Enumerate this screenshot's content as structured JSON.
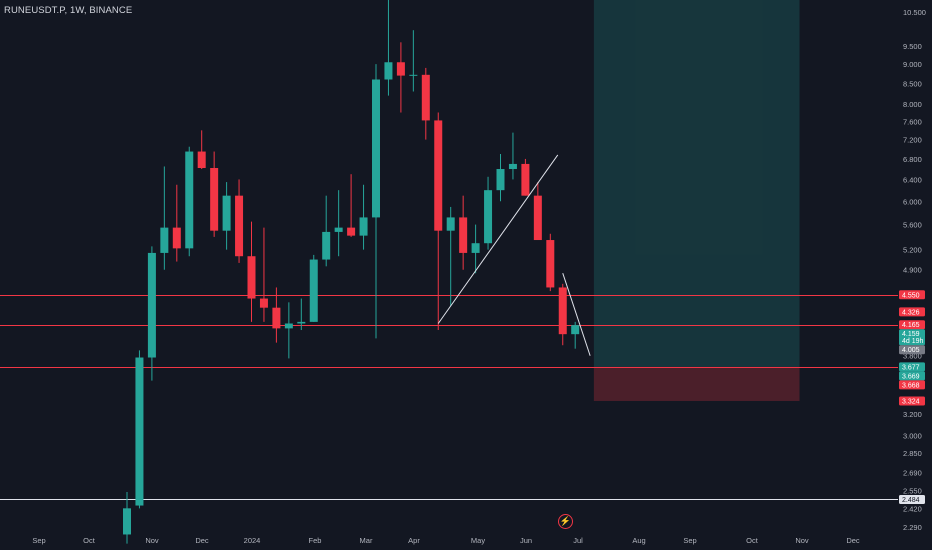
{
  "header": {
    "symbol_label": "RUNEUSDT.P, 1W, BINANCE"
  },
  "colors": {
    "background": "#131722",
    "up": "#26a69a",
    "down": "#f23645",
    "hline": "#f23645",
    "support_line": "#e0e3eb",
    "target_zone": "rgba(38,166,154,0.22)",
    "stop_zone": "rgba(242,54,69,0.25)"
  },
  "icons": {
    "replay": "lightning-bolt-icon"
  },
  "chart_data": {
    "type": "candlestick",
    "title": "RUNEUSDT.P, 1W, BINANCE",
    "y_scale": "log",
    "ylim": [
      2.24,
      11.1
    ],
    "y_ticks": [
      "10.500",
      "9.500",
      "9.000",
      "8.500",
      "8.000",
      "7.600",
      "7.200",
      "6.800",
      "6.400",
      "6.000",
      "5.600",
      "5.200",
      "4.900",
      "3.800",
      "3.200",
      "3.000",
      "2.850",
      "2.690",
      "2.550",
      "2.420",
      "2.290"
    ],
    "x_ticks": [
      "Sep",
      "Oct",
      "Nov",
      "Dec",
      "2024",
      "Feb",
      "Mar",
      "Apr",
      "May",
      "Jun",
      "Jul",
      "Aug",
      "Sep",
      "Oct",
      "Nov",
      "Dec"
    ],
    "candles": [
      {
        "o": 2.24,
        "h": 2.54,
        "l": 2.18,
        "c": 2.42
      },
      {
        "o": 2.44,
        "h": 3.86,
        "l": 2.42,
        "c": 3.78
      },
      {
        "o": 3.78,
        "h": 5.25,
        "l": 3.53,
        "c": 5.15
      },
      {
        "o": 5.15,
        "h": 6.65,
        "l": 4.9,
        "c": 5.55
      },
      {
        "o": 5.55,
        "h": 6.3,
        "l": 5.02,
        "c": 5.22
      },
      {
        "o": 5.22,
        "h": 7.05,
        "l": 5.1,
        "c": 6.95
      },
      {
        "o": 6.95,
        "h": 7.4,
        "l": 6.6,
        "c": 6.62
      },
      {
        "o": 6.62,
        "h": 6.95,
        "l": 5.4,
        "c": 5.5
      },
      {
        "o": 5.5,
        "h": 6.35,
        "l": 5.2,
        "c": 6.1
      },
      {
        "o": 6.1,
        "h": 6.4,
        "l": 5.0,
        "c": 5.1
      },
      {
        "o": 5.1,
        "h": 5.65,
        "l": 4.2,
        "c": 4.5
      },
      {
        "o": 4.5,
        "h": 5.55,
        "l": 4.2,
        "c": 4.38
      },
      {
        "o": 4.38,
        "h": 4.65,
        "l": 3.95,
        "c": 4.12
      },
      {
        "o": 4.12,
        "h": 4.45,
        "l": 3.77,
        "c": 4.18
      },
      {
        "o": 4.18,
        "h": 4.5,
        "l": 4.1,
        "c": 4.2
      },
      {
        "o": 4.2,
        "h": 5.12,
        "l": 4.2,
        "c": 5.05
      },
      {
        "o": 5.05,
        "h": 6.1,
        "l": 4.95,
        "c": 5.48
      },
      {
        "o": 5.48,
        "h": 6.2,
        "l": 5.1,
        "c": 5.55
      },
      {
        "o": 5.55,
        "h": 6.5,
        "l": 5.4,
        "c": 5.42
      },
      {
        "o": 5.42,
        "h": 6.3,
        "l": 5.2,
        "c": 5.72
      },
      {
        "o": 5.72,
        "h": 9.0,
        "l": 4.0,
        "c": 8.6
      },
      {
        "o": 8.6,
        "h": 11.1,
        "l": 8.2,
        "c": 9.05
      },
      {
        "o": 9.05,
        "h": 9.6,
        "l": 7.8,
        "c": 8.7
      },
      {
        "o": 8.7,
        "h": 9.95,
        "l": 8.3,
        "c": 8.72
      },
      {
        "o": 8.72,
        "h": 8.9,
        "l": 7.2,
        "c": 7.62
      },
      {
        "o": 7.62,
        "h": 7.8,
        "l": 4.1,
        "c": 5.5
      },
      {
        "o": 5.5,
        "h": 5.9,
        "l": 4.4,
        "c": 5.72
      },
      {
        "o": 5.72,
        "h": 6.1,
        "l": 4.9,
        "c": 5.15
      },
      {
        "o": 5.15,
        "h": 5.6,
        "l": 4.85,
        "c": 5.3
      },
      {
        "o": 5.3,
        "h": 6.45,
        "l": 5.2,
        "c": 6.2
      },
      {
        "o": 6.2,
        "h": 6.9,
        "l": 6.0,
        "c": 6.6
      },
      {
        "o": 6.6,
        "h": 7.35,
        "l": 6.4,
        "c": 6.7
      },
      {
        "o": 6.7,
        "h": 6.8,
        "l": 6.1,
        "c": 6.1
      },
      {
        "o": 6.1,
        "h": 6.35,
        "l": 5.4,
        "c": 5.35
      },
      {
        "o": 5.35,
        "h": 5.45,
        "l": 4.6,
        "c": 4.65
      },
      {
        "o": 4.65,
        "h": 4.7,
        "l": 3.92,
        "c": 4.05
      },
      {
        "o": 4.05,
        "h": 4.2,
        "l": 3.88,
        "c": 4.16
      }
    ],
    "horizontal_lines": [
      4.55,
      4.165,
      3.677,
      2.484
    ],
    "trend_lines": [
      {
        "from": {
          "candle": 25,
          "price": 4.18
        },
        "to": {
          "candle": 34.6,
          "price": 6.88
        }
      },
      {
        "from": {
          "candle": 35,
          "price": 4.85
        },
        "to": {
          "candle": 37.2,
          "price": 3.8
        }
      }
    ],
    "position": {
      "entry": 3.677,
      "target": 11.2,
      "stop": 3.324,
      "start_candle": 37.5,
      "end_candle": 54
    },
    "price_tags": [
      {
        "price": 4.55,
        "label": "4.550",
        "kind": "down"
      },
      {
        "price": 4.326,
        "label": "4.326",
        "kind": "down"
      },
      {
        "price": 4.165,
        "label": "4.165",
        "kind": "down"
      },
      {
        "price": 4.159,
        "label": "4.159",
        "sub": "4d 19h",
        "kind": "up"
      },
      {
        "price": 4.005,
        "label": "4.005",
        "kind": "grey"
      },
      {
        "price": 3.677,
        "label": "3.677",
        "kind": "up"
      },
      {
        "price": 3.669,
        "label": "3.669",
        "kind": "up"
      },
      {
        "price": 3.668,
        "label": "3.668",
        "kind": "down"
      },
      {
        "price": 3.324,
        "label": "3.324",
        "kind": "down"
      },
      {
        "price": 2.484,
        "label": "2.484",
        "kind": "white"
      }
    ]
  }
}
